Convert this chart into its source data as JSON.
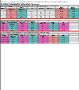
{
  "pink": "#FF9999",
  "magenta": "#FF66CC",
  "cyan": "#66CCCC",
  "teal": "#33BBBB",
  "light_gray": "#E8E8E8",
  "mid_gray": "#CCCCCC",
  "white": "#FFFFFF",
  "red_line": "#FF3333",
  "black": "#000000",
  "title1": "Figure 24 - Comparative performance of DAB/DAB+ and T2-Lite for digital radio",
  "title2": "broadcasting [35]/figure 83 + 87 + 88",
  "secA_label": "a) Table 1",
  "secA_desc1": "Gross bit rate bandwidth 1.536 MHz, Guard interval 1/4, 2.048 kHz",
  "secA_headers": [
    "Mode",
    "DAB (kbit/s)",
    "DAB+ (kbit/s)",
    "Carriers",
    "GI",
    "Protection",
    "Relative power"
  ],
  "secB_label": "b) Figure 87",
  "secB_desc1": "T2-Lite: Bandwidth 1.7 MHz / 8k extended carrier / PP7 / 1/128 GI / 256QAM",
  "secB_headers": [
    "Code rate",
    "Net bitrate",
    "Spectral eff.",
    "Guard int.",
    "Carriers",
    "PAPR (dB)",
    "C/N (dB)"
  ],
  "secB_rows": [
    [
      "1/2",
      "3.36",
      "1.98",
      "1/128",
      "852",
      "3.3",
      "11.7"
    ],
    [
      "2/3",
      "4.48",
      "2.64",
      "1/128",
      "852",
      "3.3",
      "14.2"
    ],
    [
      "3/4",
      "5.04",
      "2.97",
      "1/128",
      "852",
      "3.3",
      "16.5"
    ],
    [
      "5/6",
      "5.60",
      "3.30",
      "1/128",
      "852",
      "3.3",
      "19.3"
    ]
  ],
  "secC_label": "c) Figure 88",
  "secC_desc1": "T2-Lite: 1.7 MHz / 8k extended / PP7 / 1/128 GI / QPSK + 16-QAM",
  "secC_headers": [
    "Code rate",
    "Net bitrate",
    "Spectral eff.",
    "C/N fix (dB)",
    "C/N port (dB)",
    "DAB C/N",
    "DAB+ C/N"
  ],
  "secC_rows": [
    [
      "1/2 QPSK",
      "1.68",
      "0.99",
      "5.7",
      "12.2",
      "14.0",
      "11.0"
    ],
    [
      "2/3 QPSK",
      "2.24",
      "1.32",
      "7.8",
      "14.3",
      "14.0",
      "11.0"
    ],
    [
      "1/2 16QAM",
      "3.36",
      "1.98",
      "11.0",
      "17.5",
      "14.0",
      "11.0"
    ],
    [
      "2/3 16QAM",
      "4.48",
      "2.64",
      "13.7",
      "20.2",
      "14.0",
      "11.0"
    ]
  ],
  "secA_rows": [
    [
      "I",
      "576",
      "1152",
      "1536",
      "1/4",
      "3A",
      "0 dB"
    ],
    [
      "II",
      "192",
      "384",
      "384",
      "1/4",
      "3A",
      "0 dB"
    ],
    [
      "III",
      "384",
      "768",
      "192",
      "1/4",
      "3A",
      "0 dB"
    ],
    [
      "IV",
      "768",
      "1536",
      "768",
      "1/4",
      "3A",
      "0 dB"
    ]
  ]
}
